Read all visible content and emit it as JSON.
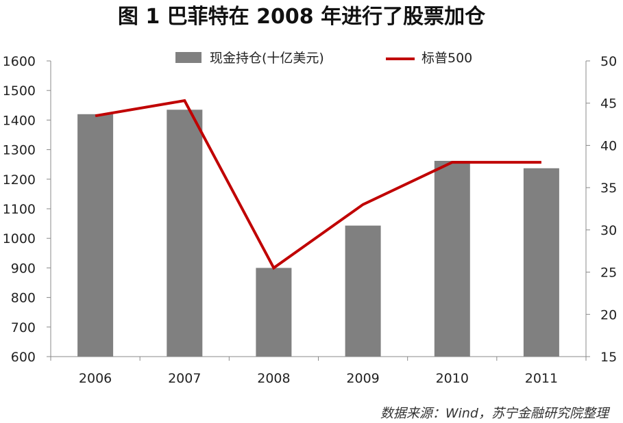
{
  "title": "图 1  巴菲特在 2008 年进行了股票加仓",
  "source": "数据来源：Wind，苏宁金融研究院整理",
  "chart_data": {
    "type": "bar",
    "categories": [
      "2006",
      "2007",
      "2008",
      "2009",
      "2010",
      "2011"
    ],
    "y_left": {
      "min": 600,
      "max": 1600,
      "step": 100,
      "ticks": [
        "600",
        "700",
        "800",
        "900",
        "1000",
        "1100",
        "1200",
        "1300",
        "1400",
        "1500",
        "1600"
      ]
    },
    "y_right": {
      "min": 15,
      "max": 50,
      "step": 5,
      "ticks": [
        "15",
        "20",
        "25",
        "30",
        "35",
        "40",
        "45",
        "50"
      ]
    },
    "series": [
      {
        "name": "现金持仓(十亿美元)",
        "type": "bar",
        "axis": "left",
        "color": "#808080",
        "values": [
          1420,
          1435,
          900,
          1043,
          1262,
          1237
        ]
      },
      {
        "name": "标普500",
        "type": "line",
        "axis": "right",
        "color": "#c00000",
        "values": [
          43.5,
          45.3,
          25.5,
          33.0,
          38.0,
          38.0
        ]
      }
    ],
    "legend_position": "top-center",
    "grid": false
  }
}
